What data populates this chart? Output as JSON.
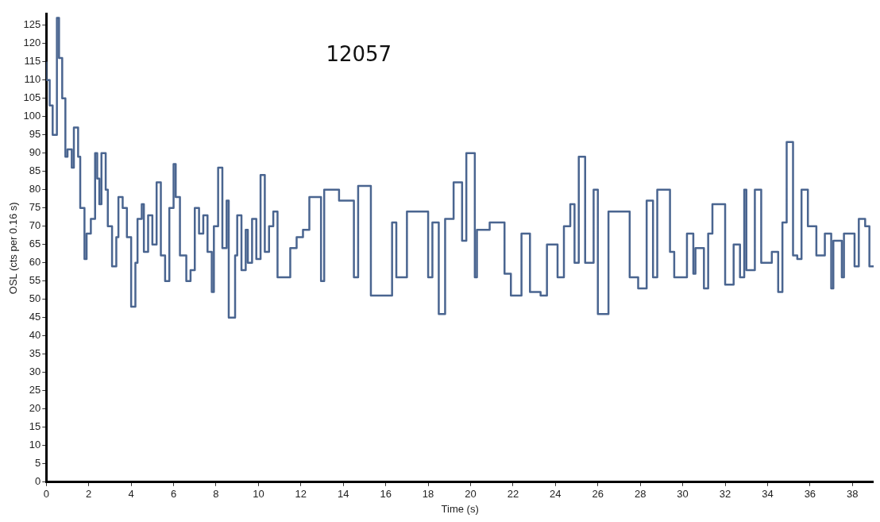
{
  "chart_data": {
    "type": "step",
    "title": "12057",
    "xlabel": "Time (s)",
    "ylabel": "OSL (cts per 0.16 s)",
    "xlim": [
      0,
      39
    ],
    "xticks": [
      0,
      2,
      4,
      6,
      8,
      10,
      12,
      14,
      16,
      18,
      20,
      22,
      24,
      26,
      28,
      30,
      32,
      34,
      36,
      38
    ],
    "ylim": [
      0,
      128
    ],
    "yticks": [
      0,
      5,
      10,
      15,
      20,
      25,
      30,
      35,
      40,
      45,
      50,
      55,
      60,
      65,
      70,
      75,
      80,
      85,
      90,
      95,
      100,
      105,
      110,
      115,
      120,
      125
    ],
    "grid": false,
    "legend": false,
    "marker": "none",
    "line_style": "solid",
    "series": [
      {
        "color": "#4a6590",
        "x": [
          0,
          0.16,
          0.3,
          0.5,
          0.6,
          0.75,
          0.9,
          1.0,
          1.2,
          1.3,
          1.5,
          1.6,
          1.8,
          1.9,
          2.1,
          2.3,
          2.4,
          2.5,
          2.6,
          2.8,
          2.9,
          3.1,
          3.3,
          3.4,
          3.6,
          3.8,
          4.0,
          4.2,
          4.3,
          4.5,
          4.6,
          4.8,
          5.0,
          5.2,
          5.4,
          5.6,
          5.8,
          6.0,
          6.1,
          6.3,
          6.6,
          6.8,
          7.0,
          7.2,
          7.4,
          7.6,
          7.8,
          7.9,
          8.1,
          8.3,
          8.5,
          8.6,
          8.9,
          9.0,
          9.2,
          9.4,
          9.5,
          9.7,
          9.9,
          10.1,
          10.3,
          10.5,
          10.7,
          10.9,
          11.5,
          11.8,
          12.1,
          12.4,
          12.95,
          13.1,
          13.8,
          14.5,
          14.7,
          15.3,
          16.3,
          16.5,
          17.0,
          18.0,
          18.2,
          18.5,
          18.8,
          19.2,
          19.6,
          19.8,
          20.2,
          20.3,
          20.9,
          21.6,
          21.9,
          22.4,
          22.8,
          23.3,
          23.6,
          24.1,
          24.4,
          24.7,
          24.9,
          25.1,
          25.4,
          25.8,
          26.0,
          26.5,
          27.5,
          27.9,
          28.3,
          28.6,
          28.8,
          29.4,
          29.6,
          30.2,
          30.5,
          30.6,
          31.0,
          31.2,
          31.4,
          32.0,
          32.4,
          32.7,
          32.9,
          33.0,
          33.4,
          33.7,
          34.2,
          34.5,
          34.7,
          34.9,
          35.2,
          35.4,
          35.6,
          35.9,
          36.3,
          36.7,
          37.0,
          37.1,
          37.5,
          37.6,
          38.1,
          38.3,
          38.6,
          38.8,
          39.0
        ],
        "values": [
          115,
          110,
          103,
          95,
          127,
          116,
          105,
          89,
          91,
          86,
          97,
          89,
          75,
          61,
          68,
          72,
          90,
          83,
          76,
          90,
          80,
          70,
          59,
          67,
          78,
          75,
          67,
          48,
          60,
          72,
          76,
          63,
          73,
          65,
          82,
          62,
          55,
          75,
          87,
          78,
          62,
          55,
          58,
          75,
          68,
          73,
          63,
          52,
          70,
          86,
          64,
          77,
          45,
          62,
          73,
          58,
          69,
          60,
          72,
          61,
          84,
          63,
          70,
          74,
          56,
          64,
          67,
          69,
          78,
          55,
          80,
          77,
          56,
          81,
          51,
          71,
          56,
          74,
          56,
          71,
          46,
          72,
          82,
          66,
          90,
          56,
          69,
          71,
          57,
          51,
          68,
          52,
          51,
          65,
          56,
          70,
          76,
          60,
          89,
          60,
          80,
          46,
          74,
          56,
          53,
          77,
          56,
          80,
          63,
          56,
          68,
          57,
          64,
          53,
          68,
          76,
          54,
          65,
          56,
          80,
          58,
          80,
          60,
          63,
          52,
          71,
          93,
          62,
          61,
          80,
          70,
          62,
          68,
          53,
          66,
          56,
          68,
          59,
          72,
          70,
          59
        ]
      }
    ]
  }
}
